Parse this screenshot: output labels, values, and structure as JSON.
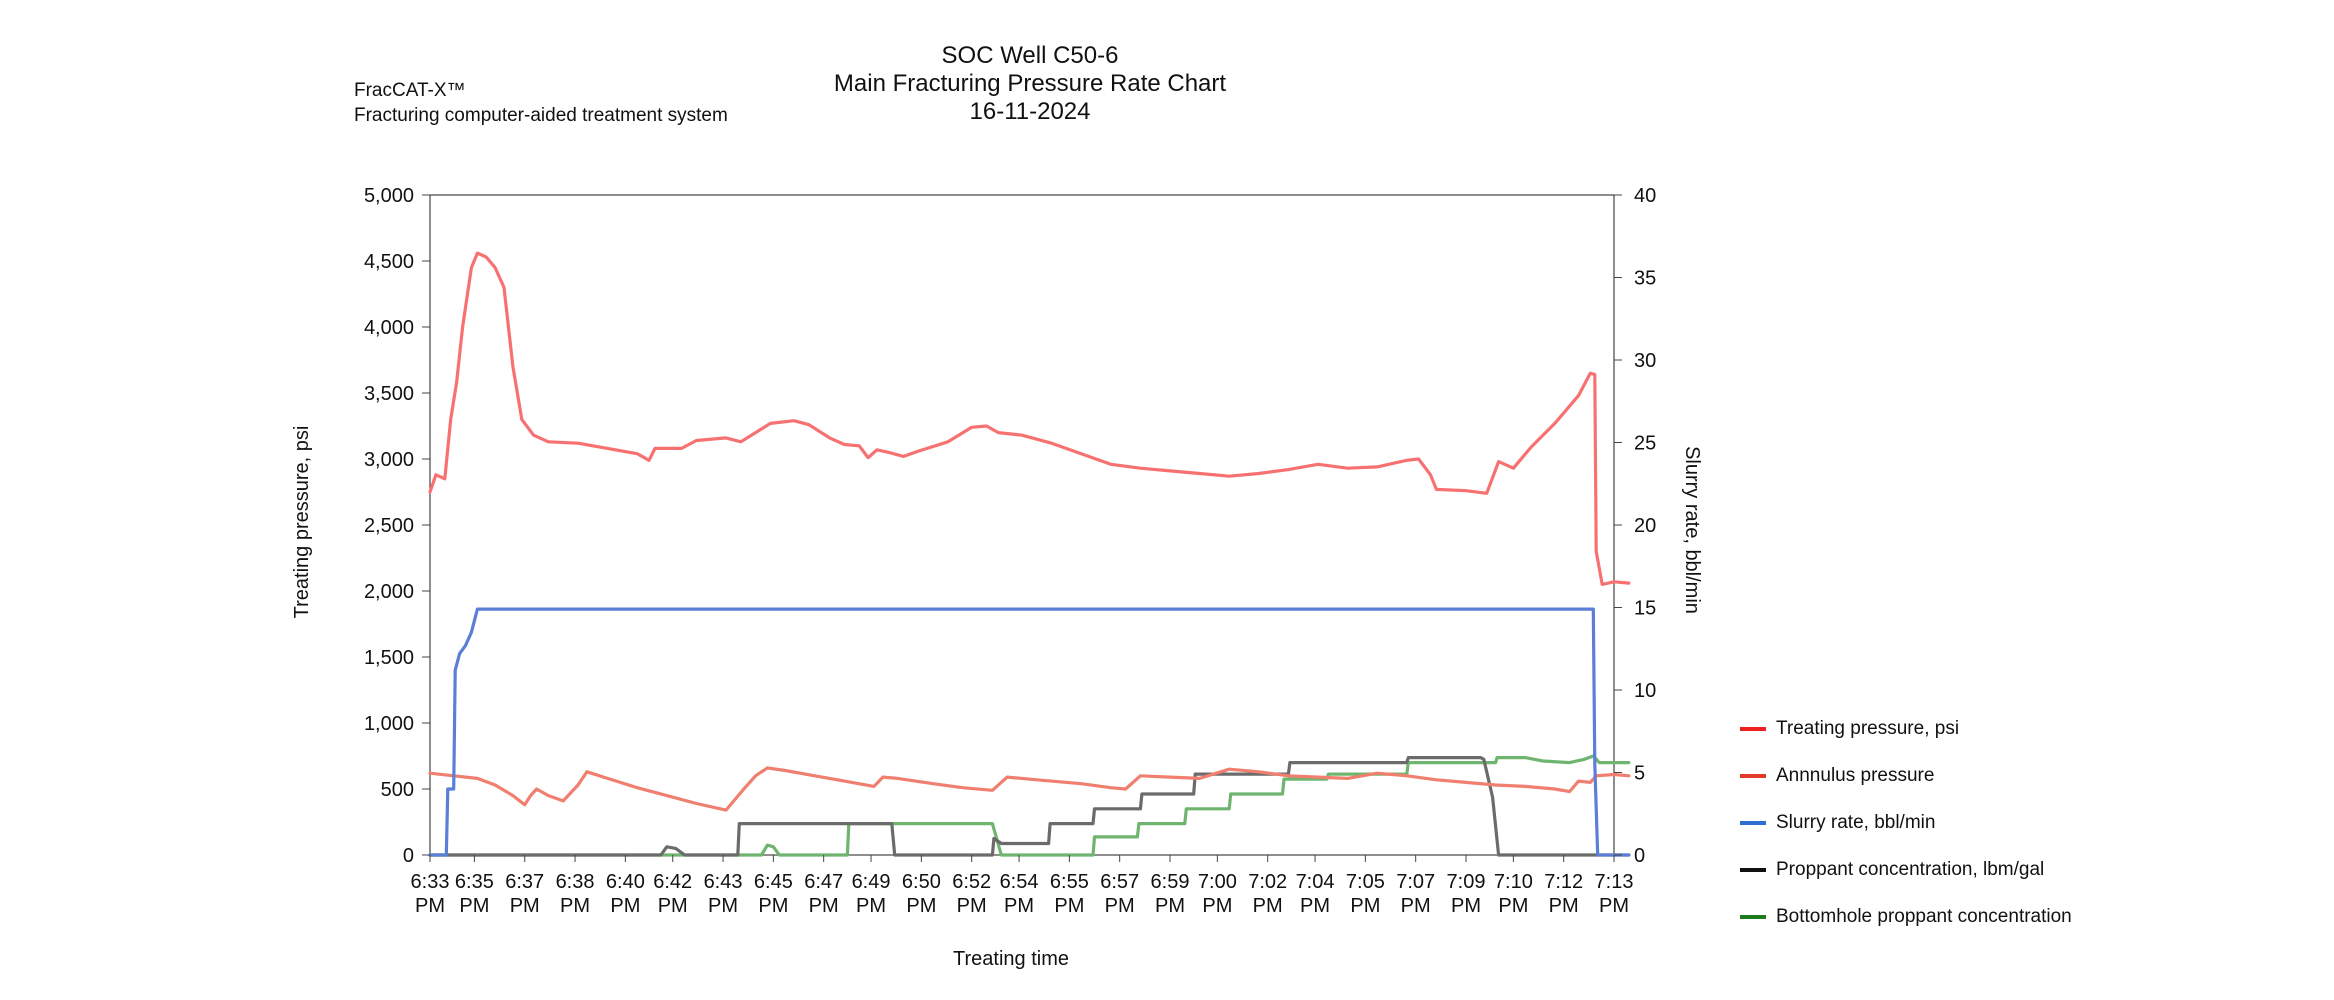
{
  "header": {
    "product_name": "FracCAT-X™",
    "product_desc": "Fracturing computer-aided treatment system",
    "title_line1": "SOC Well C50-6",
    "title_line2": "Main Fracturing Pressure Rate Chart",
    "title_line3": "16-11-2024"
  },
  "chart_data": {
    "type": "line",
    "title": "SOC Well C50-6 Main Fracturing Pressure Rate Chart 16-11-2024",
    "xlabel": "Treating time",
    "ylabel": "Treating pressure, psi",
    "y2label": "Slurry rate, bbl/min",
    "xlim": [
      0,
      40
    ],
    "ylim": [
      0,
      5000
    ],
    "y2lim": [
      0,
      40
    ],
    "yticks": [
      "0",
      "500",
      "1,000",
      "1,500",
      "2,000",
      "2,500",
      "3,000",
      "3,500",
      "4,000",
      "4,500",
      "5,000"
    ],
    "y2ticks": [
      "0",
      "5",
      "10",
      "15",
      "20",
      "25",
      "30",
      "35",
      "40"
    ],
    "xticks": [
      {
        "x": 0.0,
        "line1": "6:33",
        "line2": "PM"
      },
      {
        "x": 1.5,
        "line1": "6:35",
        "line2": "PM"
      },
      {
        "x": 3.2,
        "line1": "6:37",
        "line2": "PM"
      },
      {
        "x": 4.9,
        "line1": "6:38",
        "line2": "PM"
      },
      {
        "x": 6.6,
        "line1": "6:40",
        "line2": "PM"
      },
      {
        "x": 8.2,
        "line1": "6:42",
        "line2": "PM"
      },
      {
        "x": 9.9,
        "line1": "6:43",
        "line2": "PM"
      },
      {
        "x": 11.6,
        "line1": "6:45",
        "line2": "PM"
      },
      {
        "x": 13.3,
        "line1": "6:47",
        "line2": "PM"
      },
      {
        "x": 14.9,
        "line1": "6:49",
        "line2": "PM"
      },
      {
        "x": 16.6,
        "line1": "6:50",
        "line2": "PM"
      },
      {
        "x": 18.3,
        "line1": "6:52",
        "line2": "PM"
      },
      {
        "x": 19.9,
        "line1": "6:54",
        "line2": "PM"
      },
      {
        "x": 21.6,
        "line1": "6:55",
        "line2": "PM"
      },
      {
        "x": 23.3,
        "line1": "6:57",
        "line2": "PM"
      },
      {
        "x": 25.0,
        "line1": "6:59",
        "line2": "PM"
      },
      {
        "x": 26.6,
        "line1": "7:00",
        "line2": "PM"
      },
      {
        "x": 28.3,
        "line1": "7:02",
        "line2": "PM"
      },
      {
        "x": 29.9,
        "line1": "7:04",
        "line2": "PM"
      },
      {
        "x": 31.6,
        "line1": "7:05",
        "line2": "PM"
      },
      {
        "x": 33.3,
        "line1": "7:07",
        "line2": "PM"
      },
      {
        "x": 35.0,
        "line1": "7:09",
        "line2": "PM"
      },
      {
        "x": 36.6,
        "line1": "7:10",
        "line2": "PM"
      },
      {
        "x": 38.3,
        "line1": "7:12",
        "line2": "PM"
      },
      {
        "x": 40.0,
        "line1": "7:13",
        "line2": "PM"
      }
    ],
    "grid": false,
    "legend_position": "right",
    "series": [
      {
        "name": "Treating pressure, psi",
        "axis": "left",
        "color": "#f87171",
        "points": [
          [
            0,
            2750
          ],
          [
            0.2,
            2880
          ],
          [
            0.5,
            2850
          ],
          [
            0.7,
            3300
          ],
          [
            0.9,
            3580
          ],
          [
            1.1,
            4000
          ],
          [
            1.4,
            4450
          ],
          [
            1.6,
            4560
          ],
          [
            1.9,
            4530
          ],
          [
            2.2,
            4450
          ],
          [
            2.5,
            4300
          ],
          [
            2.8,
            3700
          ],
          [
            3.1,
            3300
          ],
          [
            3.5,
            3180
          ],
          [
            4.0,
            3130
          ],
          [
            5.0,
            3120
          ],
          [
            6.0,
            3080
          ],
          [
            7.0,
            3040
          ],
          [
            7.4,
            2990
          ],
          [
            7.6,
            3080
          ],
          [
            8.5,
            3080
          ],
          [
            9.0,
            3140
          ],
          [
            10.0,
            3160
          ],
          [
            10.5,
            3130
          ],
          [
            11.0,
            3200
          ],
          [
            11.5,
            3270
          ],
          [
            12.3,
            3290
          ],
          [
            12.8,
            3260
          ],
          [
            13.5,
            3160
          ],
          [
            14.0,
            3110
          ],
          [
            14.5,
            3100
          ],
          [
            14.8,
            3010
          ],
          [
            15.1,
            3070
          ],
          [
            15.5,
            3050
          ],
          [
            16.0,
            3020
          ],
          [
            16.5,
            3060
          ],
          [
            17.5,
            3130
          ],
          [
            18.3,
            3240
          ],
          [
            18.8,
            3250
          ],
          [
            19.2,
            3200
          ],
          [
            20.0,
            3180
          ],
          [
            21.0,
            3120
          ],
          [
            22.0,
            3040
          ],
          [
            23.0,
            2960
          ],
          [
            24.0,
            2930
          ],
          [
            25.0,
            2910
          ],
          [
            26.0,
            2890
          ],
          [
            27.0,
            2870
          ],
          [
            28.0,
            2890
          ],
          [
            29.0,
            2920
          ],
          [
            30.0,
            2960
          ],
          [
            31.0,
            2930
          ],
          [
            32.0,
            2940
          ],
          [
            33.0,
            2990
          ],
          [
            33.4,
            3000
          ],
          [
            33.8,
            2880
          ],
          [
            34.0,
            2770
          ],
          [
            35.0,
            2760
          ],
          [
            35.7,
            2740
          ],
          [
            36.1,
            2980
          ],
          [
            36.6,
            2930
          ],
          [
            37.2,
            3090
          ],
          [
            38.0,
            3270
          ],
          [
            38.8,
            3480
          ],
          [
            39.2,
            3650
          ],
          [
            39.35,
            3640
          ],
          [
            39.4,
            2300
          ],
          [
            39.6,
            2050
          ],
          [
            40.0,
            2070
          ],
          [
            40.5,
            2060
          ]
        ]
      },
      {
        "name": "Annnulus pressure",
        "axis": "left",
        "color": "#f07f6f",
        "points": [
          [
            0,
            620
          ],
          [
            0.8,
            600
          ],
          [
            1.6,
            580
          ],
          [
            2.2,
            530
          ],
          [
            2.8,
            450
          ],
          [
            3.2,
            380
          ],
          [
            3.4,
            450
          ],
          [
            3.6,
            500
          ],
          [
            4.0,
            450
          ],
          [
            4.5,
            410
          ],
          [
            5.0,
            530
          ],
          [
            5.3,
            630
          ],
          [
            6.0,
            580
          ],
          [
            7.0,
            510
          ],
          [
            8.0,
            450
          ],
          [
            9.0,
            390
          ],
          [
            10.0,
            340
          ],
          [
            10.6,
            500
          ],
          [
            11.0,
            600
          ],
          [
            11.4,
            660
          ],
          [
            12.0,
            640
          ],
          [
            13.0,
            600
          ],
          [
            14.0,
            560
          ],
          [
            15.0,
            520
          ],
          [
            15.3,
            590
          ],
          [
            15.8,
            580
          ],
          [
            17.0,
            540
          ],
          [
            18.0,
            510
          ],
          [
            19.0,
            490
          ],
          [
            19.5,
            590
          ],
          [
            20.5,
            570
          ],
          [
            22.0,
            540
          ],
          [
            23.0,
            510
          ],
          [
            23.5,
            500
          ],
          [
            24.0,
            600
          ],
          [
            25.0,
            590
          ],
          [
            26.0,
            580
          ],
          [
            27.0,
            650
          ],
          [
            28.0,
            630
          ],
          [
            29.0,
            600
          ],
          [
            30.0,
            590
          ],
          [
            31.0,
            580
          ],
          [
            32.0,
            620
          ],
          [
            33.0,
            600
          ],
          [
            34.0,
            570
          ],
          [
            35.0,
            550
          ],
          [
            36.0,
            530
          ],
          [
            37.0,
            520
          ],
          [
            38.0,
            500
          ],
          [
            38.5,
            480
          ],
          [
            38.8,
            560
          ],
          [
            39.2,
            550
          ],
          [
            39.4,
            600
          ],
          [
            40.0,
            610
          ],
          [
            40.5,
            600
          ]
        ]
      },
      {
        "name": "Slurry rate, bbl/min",
        "axis": "right",
        "color": "#5b7fd6",
        "points": [
          [
            0,
            0
          ],
          [
            0.55,
            0
          ],
          [
            0.6,
            4
          ],
          [
            0.8,
            4
          ],
          [
            0.85,
            11.2
          ],
          [
            1.0,
            12.2
          ],
          [
            1.2,
            12.7
          ],
          [
            1.4,
            13.5
          ],
          [
            1.5,
            14.2
          ],
          [
            1.6,
            14.9
          ],
          [
            39.0,
            14.9
          ],
          [
            39.3,
            14.9
          ],
          [
            39.35,
            5.5
          ],
          [
            39.45,
            0
          ],
          [
            40.5,
            0
          ]
        ]
      },
      {
        "name": "Proppant concentration, lbm/gal",
        "axis": "right",
        "color": "#6b6b6b",
        "points": [
          [
            0,
            0
          ],
          [
            7.8,
            0
          ],
          [
            8.0,
            0.5
          ],
          [
            8.3,
            0.4
          ],
          [
            8.6,
            0
          ],
          [
            10.4,
            0
          ],
          [
            10.45,
            1.9
          ],
          [
            15.6,
            1.9
          ],
          [
            15.7,
            0
          ],
          [
            19.0,
            0
          ],
          [
            19.05,
            1.0
          ],
          [
            19.3,
            0.7
          ],
          [
            19.4,
            0.7
          ],
          [
            20.9,
            0.7
          ],
          [
            20.95,
            1.9
          ],
          [
            22.4,
            1.9
          ],
          [
            22.45,
            2.8
          ],
          [
            24.0,
            2.8
          ],
          [
            24.05,
            3.7
          ],
          [
            25.8,
            3.7
          ],
          [
            25.85,
            4.9
          ],
          [
            29.0,
            4.9
          ],
          [
            29.05,
            5.6
          ],
          [
            33.0,
            5.6
          ],
          [
            33.05,
            5.9
          ],
          [
            35.5,
            5.9
          ],
          [
            35.6,
            5.8
          ],
          [
            35.9,
            3.5
          ],
          [
            36.1,
            0
          ],
          [
            37.0,
            0
          ],
          [
            40.5,
            0
          ]
        ]
      },
      {
        "name": "Bottomhole proppant concentration",
        "axis": "right",
        "color": "#6fb56f",
        "points": [
          [
            0,
            0
          ],
          [
            11.2,
            0
          ],
          [
            11.4,
            0.6
          ],
          [
            11.6,
            0.5
          ],
          [
            11.8,
            0
          ],
          [
            14.1,
            0
          ],
          [
            14.15,
            1.9
          ],
          [
            19.0,
            1.9
          ],
          [
            19.3,
            0
          ],
          [
            22.4,
            0
          ],
          [
            22.45,
            1.1
          ],
          [
            23.9,
            1.1
          ],
          [
            23.95,
            1.9
          ],
          [
            25.5,
            1.9
          ],
          [
            25.55,
            2.8
          ],
          [
            27.0,
            2.8
          ],
          [
            27.05,
            3.7
          ],
          [
            28.8,
            3.7
          ],
          [
            28.85,
            4.6
          ],
          [
            30.3,
            4.6
          ],
          [
            30.35,
            4.9
          ],
          [
            33.0,
            4.9
          ],
          [
            33.05,
            5.6
          ],
          [
            36.0,
            5.6
          ],
          [
            36.05,
            5.9
          ],
          [
            37.0,
            5.9
          ],
          [
            37.6,
            5.7
          ],
          [
            38.5,
            5.6
          ],
          [
            39.0,
            5.8
          ],
          [
            39.3,
            6.0
          ],
          [
            39.5,
            5.6
          ],
          [
            40.5,
            5.6
          ]
        ]
      }
    ]
  },
  "legend": {
    "items": [
      {
        "label": "Treating pressure, psi",
        "color": "#ef2020"
      },
      {
        "label": "Annnulus pressure",
        "color": "#e53a2a"
      },
      {
        "label": "Slurry rate, bbl/min",
        "color": "#2f6fd2"
      },
      {
        "label": "Proppant concentration, lbm/gal",
        "color": "#111111"
      },
      {
        "label": "Bottomhole proppant concentration",
        "color": "#1e7a1e"
      }
    ]
  }
}
